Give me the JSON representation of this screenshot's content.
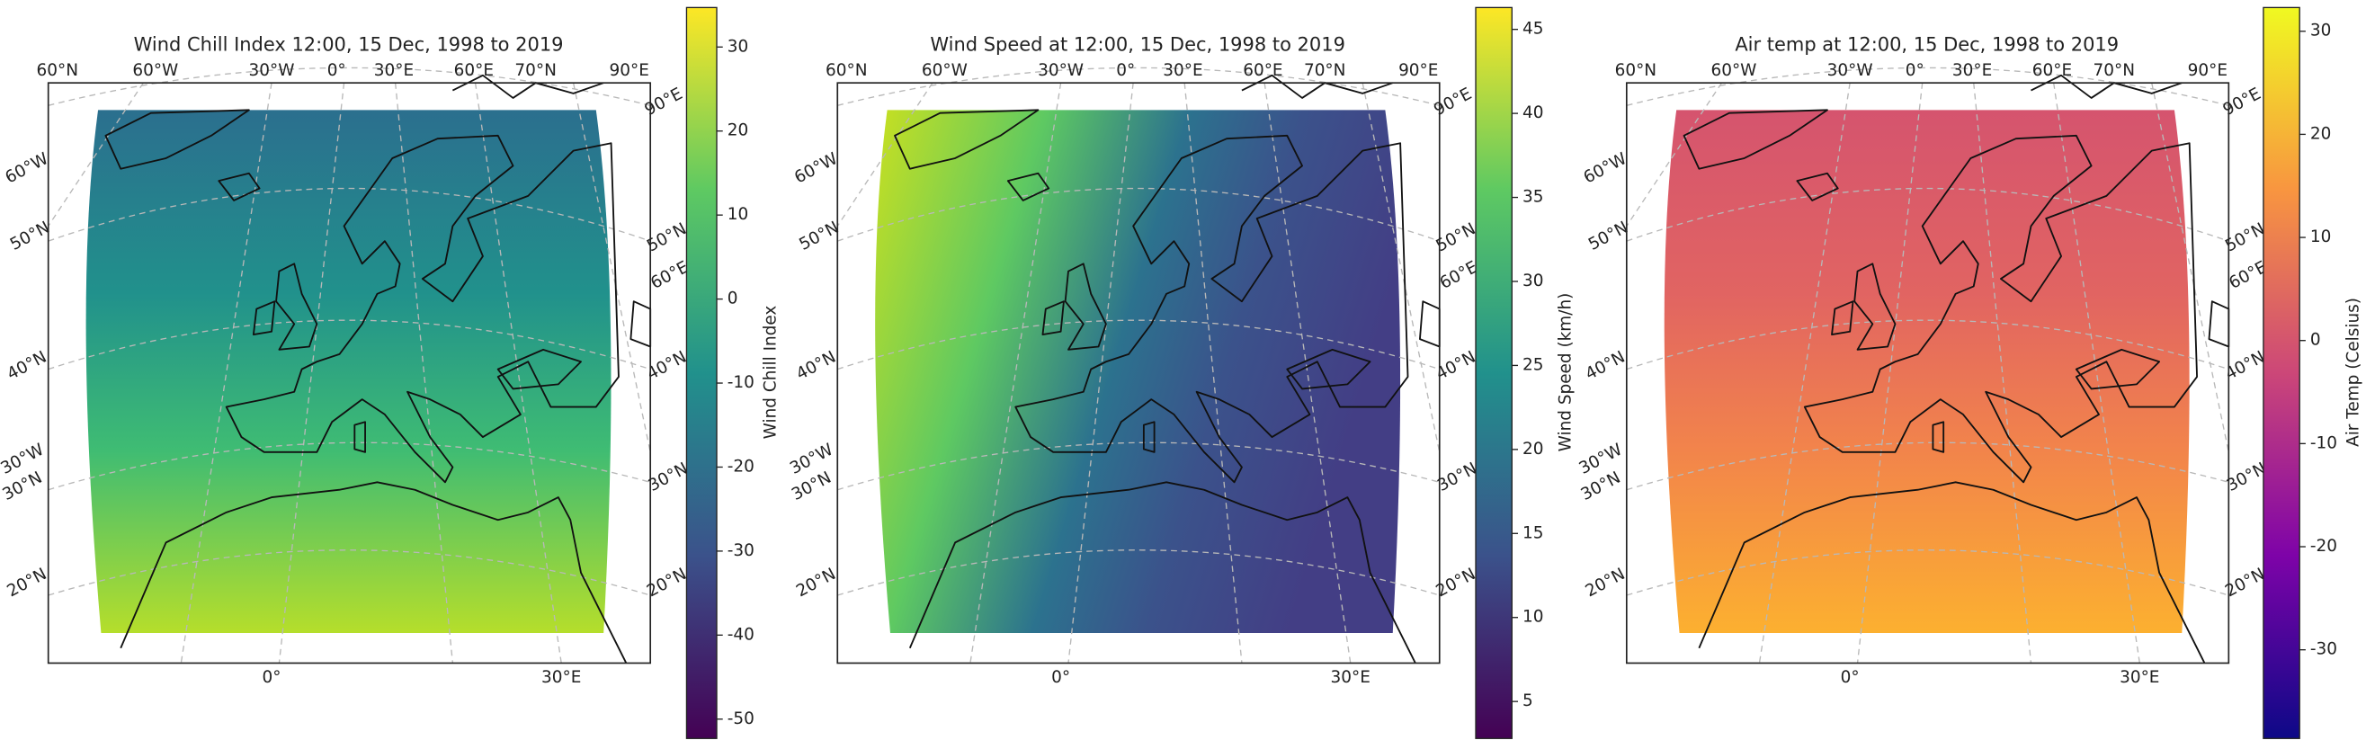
{
  "chart_data": [
    {
      "type": "map",
      "title": "Wind Chill Index 12:00, 15 Dec, 1998 to 2019",
      "colorbar_label": "Wind Chill Index",
      "colormap": "viridis",
      "ylim": [
        -52.3,
        34.7
      ],
      "yticks": [
        -50,
        -40,
        -30,
        -20,
        -10,
        0,
        10,
        20,
        30
      ]
    },
    {
      "type": "map",
      "title": "Wind Speed at 12:00, 15 Dec, 1998 to 2019",
      "colorbar_label": "Wind Speed (km/h)",
      "colormap": "viridis",
      "ylim": [
        2.8,
        46.3
      ],
      "yticks": [
        5,
        10,
        15,
        20,
        25,
        30,
        35,
        40,
        45
      ]
    },
    {
      "type": "map",
      "title": "Air temp at 12:00, 15 Dec, 1998 to 2019",
      "colorbar_label": "Air Temp (Celsius)",
      "colormap": "plasma",
      "ylim": [
        -38.6,
        32.3
      ],
      "yticks": [
        -30,
        -20,
        -10,
        0,
        10,
        20,
        30
      ]
    }
  ],
  "graticule_labels": {
    "top": [
      "60°N",
      "60°W",
      "30°W",
      "0°",
      "30°E",
      "60°E",
      "70°N",
      "90°E"
    ],
    "left": [
      "60°W",
      "50°N",
      "40°N",
      "30°W",
      "30°N",
      "20°N"
    ],
    "right": [
      "90°E",
      "50°N",
      "60°E",
      "40°N",
      "30°N",
      "20°N"
    ],
    "bottom": [
      "0°",
      "30°E"
    ]
  }
}
